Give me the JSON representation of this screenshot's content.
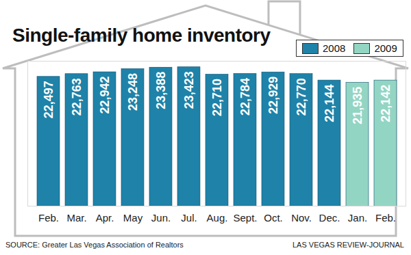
{
  "chart_data": {
    "type": "bar",
    "title": "Single-family home inventory",
    "categories": [
      "Feb.",
      "Mar.",
      "Apr.",
      "May",
      "Jun.",
      "Jul.",
      "Aug.",
      "Sept.",
      "Oct.",
      "Nov.",
      "Dec.",
      "Jan.",
      "Feb."
    ],
    "series": [
      {
        "name": "2008",
        "color": "#1f82a8",
        "values": [
          22497,
          22763,
          22942,
          23248,
          23388,
          23423,
          22710,
          22784,
          22929,
          22770,
          22144,
          null,
          null
        ],
        "value_labels": [
          "22,497",
          "22,763",
          "22,942",
          "23,248",
          "23,388",
          "23,423",
          "22,710",
          "22,784",
          "22,929",
          "22,770",
          "22,144",
          null,
          null
        ]
      },
      {
        "name": "2009",
        "color": "#93d5c3",
        "values": [
          null,
          null,
          null,
          null,
          null,
          null,
          null,
          null,
          null,
          null,
          null,
          21935,
          22142
        ],
        "value_labels": [
          null,
          null,
          null,
          null,
          null,
          null,
          null,
          null,
          null,
          null,
          null,
          "21,935",
          "22,142"
        ]
      }
    ],
    "ylim": [
      10000,
      24000
    ],
    "data_labels": true,
    "tick_labels": "x",
    "legend": "top-right",
    "annotations": [
      "SOURCE: Greater Las Vegas Association of Realtors",
      "LAS VEGAS REVIEW-JOURNAL"
    ]
  }
}
